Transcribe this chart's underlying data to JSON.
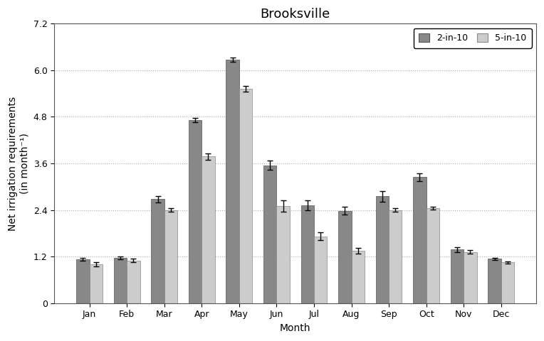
{
  "title": "Brooksville",
  "xlabel": "Month",
  "ylabel": "Net irrigation requirements\n(in month⁻¹)",
  "months": [
    "Jan",
    "Feb",
    "Mar",
    "Apr",
    "May",
    "Jun",
    "Jul",
    "Aug",
    "Sep",
    "Oct",
    "Nov",
    "Dec"
  ],
  "bar_2in10": [
    1.13,
    1.17,
    2.68,
    4.72,
    6.27,
    3.55,
    2.52,
    2.38,
    2.75,
    3.25,
    1.38,
    1.14
  ],
  "bar_5in10": [
    1.0,
    1.1,
    2.4,
    3.78,
    5.52,
    2.5,
    1.72,
    1.35,
    2.4,
    2.45,
    1.32,
    1.05
  ],
  "err_2in10": [
    0.03,
    0.04,
    0.08,
    0.05,
    0.05,
    0.12,
    0.12,
    0.1,
    0.13,
    0.1,
    0.06,
    0.03
  ],
  "err_5in10": [
    0.05,
    0.04,
    0.04,
    0.08,
    0.07,
    0.15,
    0.1,
    0.07,
    0.05,
    0.04,
    0.04,
    0.03
  ],
  "color_2in10": "#888888",
  "color_5in10": "#cccccc",
  "ylim": [
    0,
    7.2
  ],
  "yticks": [
    0,
    1.2,
    2.4,
    3.6,
    4.8,
    6.0,
    7.2
  ],
  "bar_width": 0.35,
  "legend_labels": [
    "2-in-10",
    "5-in-10"
  ],
  "title_fontsize": 13,
  "label_fontsize": 10,
  "tick_fontsize": 9,
  "plot_bg_color": "#ffffff",
  "fig_bg_color": "#ffffff",
  "grid_color": "#aaaaaa"
}
